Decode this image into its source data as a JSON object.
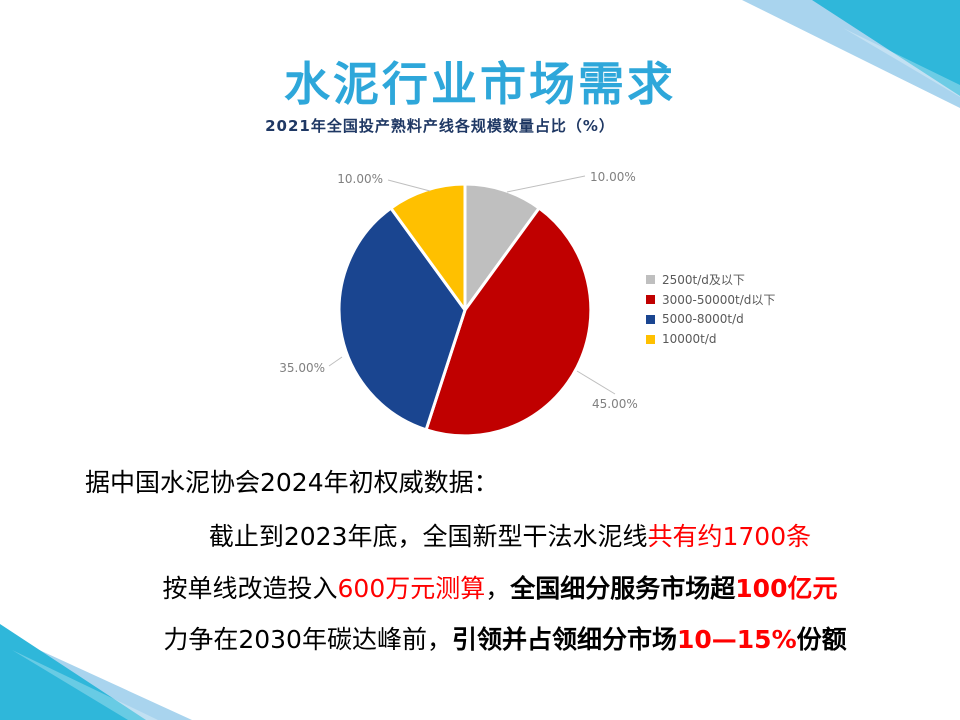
{
  "slide_title": "水泥行业市场需求",
  "body": {
    "line1": "据中国水泥协会2024年初权威数据：",
    "line2_segments": [
      {
        "text": "截止到2023年底，全国新型干法水泥线",
        "color": "black",
        "bold": false
      },
      {
        "text": "共有约1700条",
        "color": "red",
        "bold": false
      }
    ],
    "line3_segments": [
      {
        "text": "按单线改造投入",
        "color": "black",
        "bold": false
      },
      {
        "text": "600万元测算",
        "color": "red",
        "bold": false
      },
      {
        "text": "，",
        "color": "black",
        "bold": false
      },
      {
        "text": "全国细分服务市场超",
        "color": "black",
        "bold": true
      },
      {
        "text": "100亿元",
        "color": "red",
        "bold": true
      }
    ],
    "line4_segments": [
      {
        "text": "力争在2030年碳达峰前，",
        "color": "black",
        "bold": false
      },
      {
        "text": "引领并占领细分市场",
        "color": "black",
        "bold": true
      },
      {
        "text": "10—15%",
        "color": "red",
        "bold": true
      },
      {
        "text": "份额",
        "color": "black",
        "bold": true
      }
    ]
  },
  "chart_data": {
    "type": "pie",
    "title": "2021年全国投产熟料产线各规模数量占比（%）",
    "unit": "%",
    "legend_position": "right",
    "start_angle": "12-o-clock-clockwise",
    "slices": [
      {
        "label": "2500t/d及以下",
        "value": 10.0,
        "pct_label": "10.00%",
        "color": "#BFBFBF"
      },
      {
        "label": "3000-50000t/d以下",
        "value": 45.0,
        "pct_label": "45.00%",
        "color": "#C00000"
      },
      {
        "label": "5000-8000t/d",
        "value": 35.0,
        "pct_label": "35.00%",
        "color": "#1A4590"
      },
      {
        "label": "10000t/d",
        "value": 10.0,
        "pct_label": "10.00%",
        "color": "#FFC000"
      }
    ]
  },
  "colors": {
    "title": "#2EA7DA",
    "chart_title": "#1F3864",
    "accent_red": "#FF0000",
    "text_black": "#000000",
    "deco_cyan": "#2FB7DA",
    "deco_light": "#A9D4EE",
    "label_gray": "#808080",
    "leader_gray": "#BFBFBF",
    "legend_text": "#595959"
  }
}
